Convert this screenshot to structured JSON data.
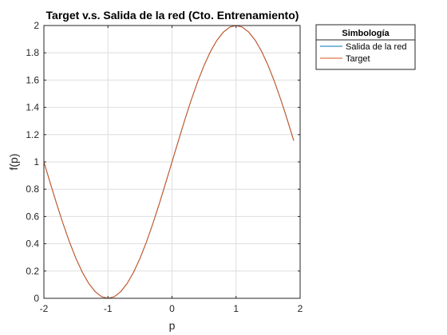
{
  "chart_data": {
    "type": "line",
    "title": "Target v.s. Salida de la red (Cto. Entrenamiento)",
    "xlabel": "p",
    "ylabel": "f(p)",
    "xlim": [
      -2,
      2
    ],
    "ylim": [
      0,
      2
    ],
    "xticks": [
      -2,
      -1,
      0,
      1,
      2
    ],
    "xtick_labels": [
      "-2",
      "-1",
      "0",
      "1",
      "2"
    ],
    "yticks": [
      0,
      0.2,
      0.4,
      0.6,
      0.8,
      1,
      1.2,
      1.4,
      1.6,
      1.8,
      2
    ],
    "ytick_labels": [
      "0",
      "0.2",
      "0.4",
      "0.6",
      "0.8",
      "1",
      "1.2",
      "1.4",
      "1.6",
      "1.8",
      "2"
    ],
    "grid": true,
    "legend": {
      "title": "Simbología",
      "placement": "outside-top-right"
    },
    "x": [
      -2,
      -1.9,
      -1.8,
      -1.7,
      -1.6,
      -1.5,
      -1.4,
      -1.3,
      -1.2,
      -1.1,
      -1,
      -0.9,
      -0.8,
      -0.7,
      -0.6,
      -0.5,
      -0.4,
      -0.3,
      -0.2,
      -0.1,
      0,
      0.1,
      0.2,
      0.3,
      0.4,
      0.5,
      0.6,
      0.7,
      0.8,
      0.9,
      1,
      1.1,
      1.2,
      1.3,
      1.4,
      1.5,
      1.6,
      1.7,
      1.8,
      1.9
    ],
    "series": [
      {
        "name": "Salida de la red",
        "color": "#0072BD",
        "values": [
          1,
          0.844,
          0.691,
          0.546,
          0.412,
          0.293,
          0.191,
          0.109,
          0.049,
          0.012,
          0,
          0.012,
          0.049,
          0.109,
          0.191,
          0.293,
          0.412,
          0.546,
          0.691,
          0.844,
          1,
          1.156,
          1.309,
          1.454,
          1.588,
          1.707,
          1.809,
          1.891,
          1.951,
          1.988,
          2,
          1.988,
          1.951,
          1.891,
          1.809,
          1.707,
          1.588,
          1.454,
          1.309,
          1.156
        ]
      },
      {
        "name": "Target",
        "color": "#D95319",
        "values": [
          1,
          0.844,
          0.691,
          0.546,
          0.412,
          0.293,
          0.191,
          0.109,
          0.049,
          0.012,
          0,
          0.012,
          0.049,
          0.109,
          0.191,
          0.293,
          0.412,
          0.546,
          0.691,
          0.844,
          1,
          1.156,
          1.309,
          1.454,
          1.588,
          1.707,
          1.809,
          1.891,
          1.951,
          1.988,
          2,
          1.988,
          1.951,
          1.891,
          1.809,
          1.707,
          1.588,
          1.454,
          1.309,
          1.156
        ]
      }
    ]
  }
}
